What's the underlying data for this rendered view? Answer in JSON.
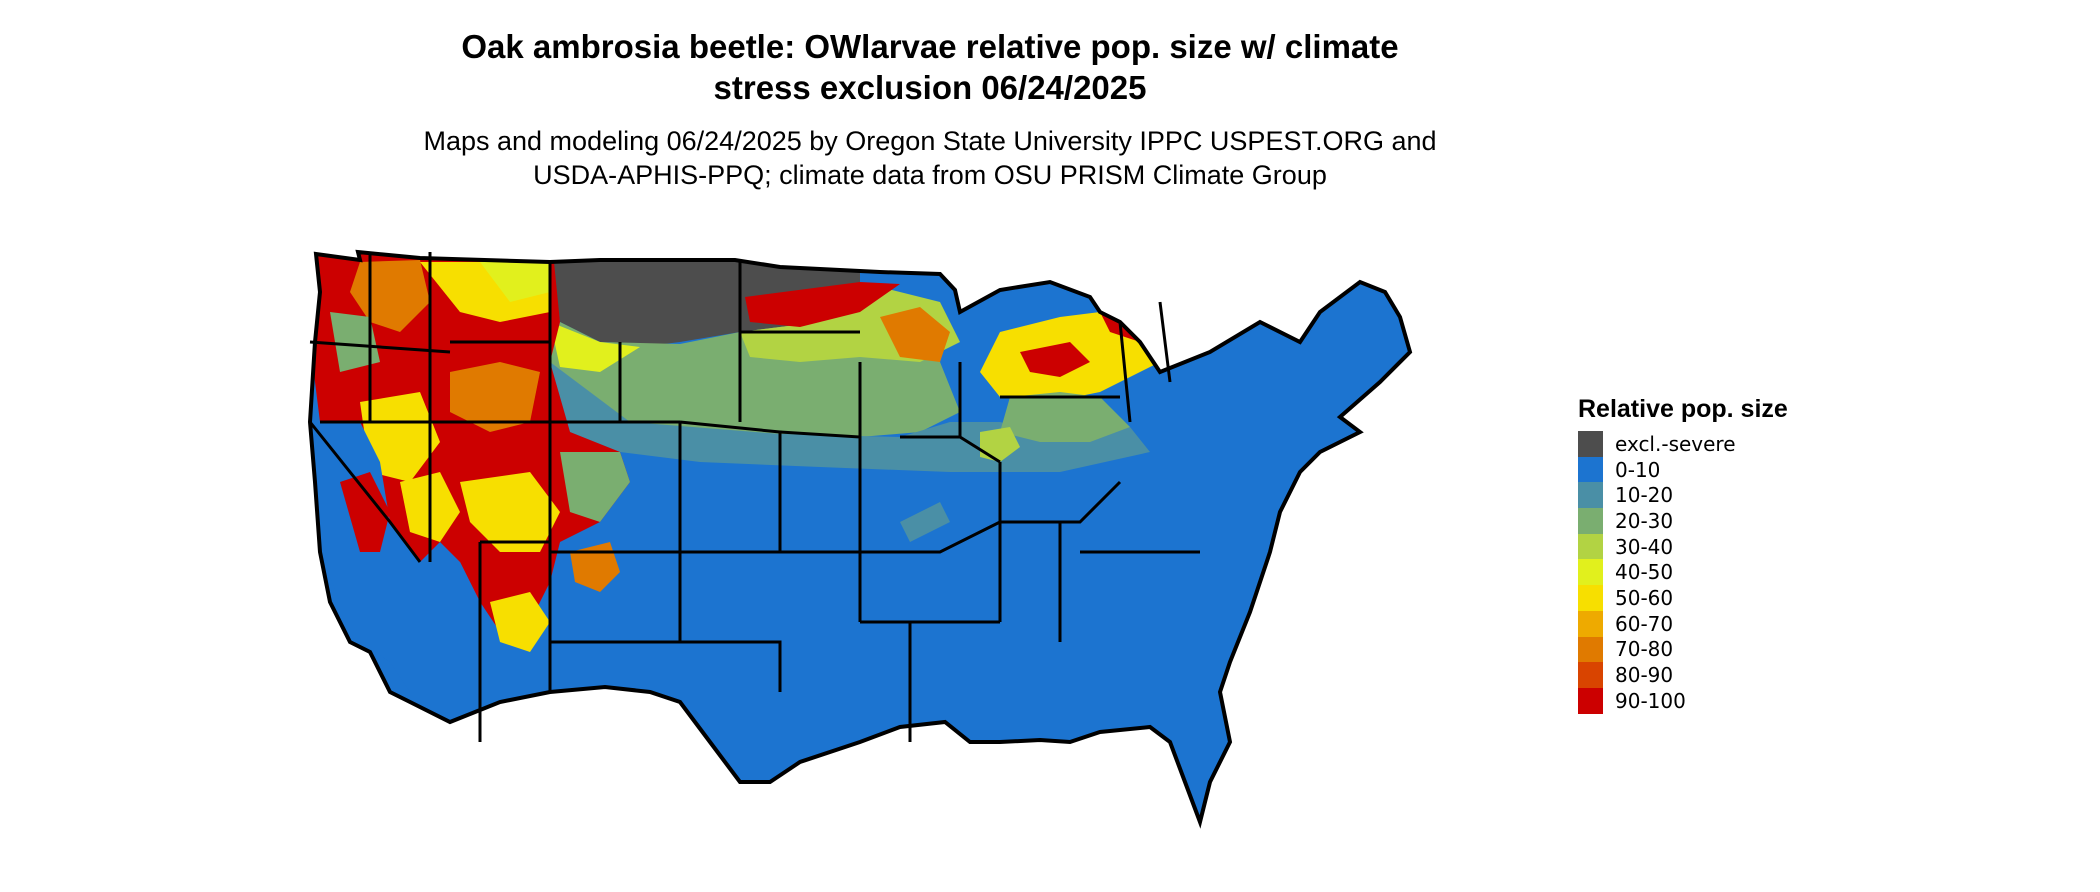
{
  "title_line1": "Oak ambrosia beetle: OWlarvae relative pop. size w/ climate",
  "title_line2": "stress exclusion 06/24/2025",
  "subtitle_line1": "Maps and modeling 06/24/2025 by Oregon State University IPPC USPEST.ORG and",
  "subtitle_line2": "USDA-APHIS-PPQ; climate data from OSU PRISM Climate Group",
  "legend": {
    "title": "Relative pop. size",
    "items": [
      {
        "label": "excl.-severe",
        "color": "#4d4d4d"
      },
      {
        "label": "0-10",
        "color": "#1c74d0"
      },
      {
        "label": "10-20",
        "color": "#4a8fa6"
      },
      {
        "label": "20-30",
        "color": "#7aae70"
      },
      {
        "label": "30-40",
        "color": "#b2d343"
      },
      {
        "label": "40-50",
        "color": "#e1f01d"
      },
      {
        "label": "50-60",
        "color": "#f7df00"
      },
      {
        "label": "60-70",
        "color": "#eeaa00"
      },
      {
        "label": "70-80",
        "color": "#e07a00"
      },
      {
        "label": "80-90",
        "color": "#d94400"
      },
      {
        "label": "90-100",
        "color": "#cc0000"
      }
    ]
  }
}
